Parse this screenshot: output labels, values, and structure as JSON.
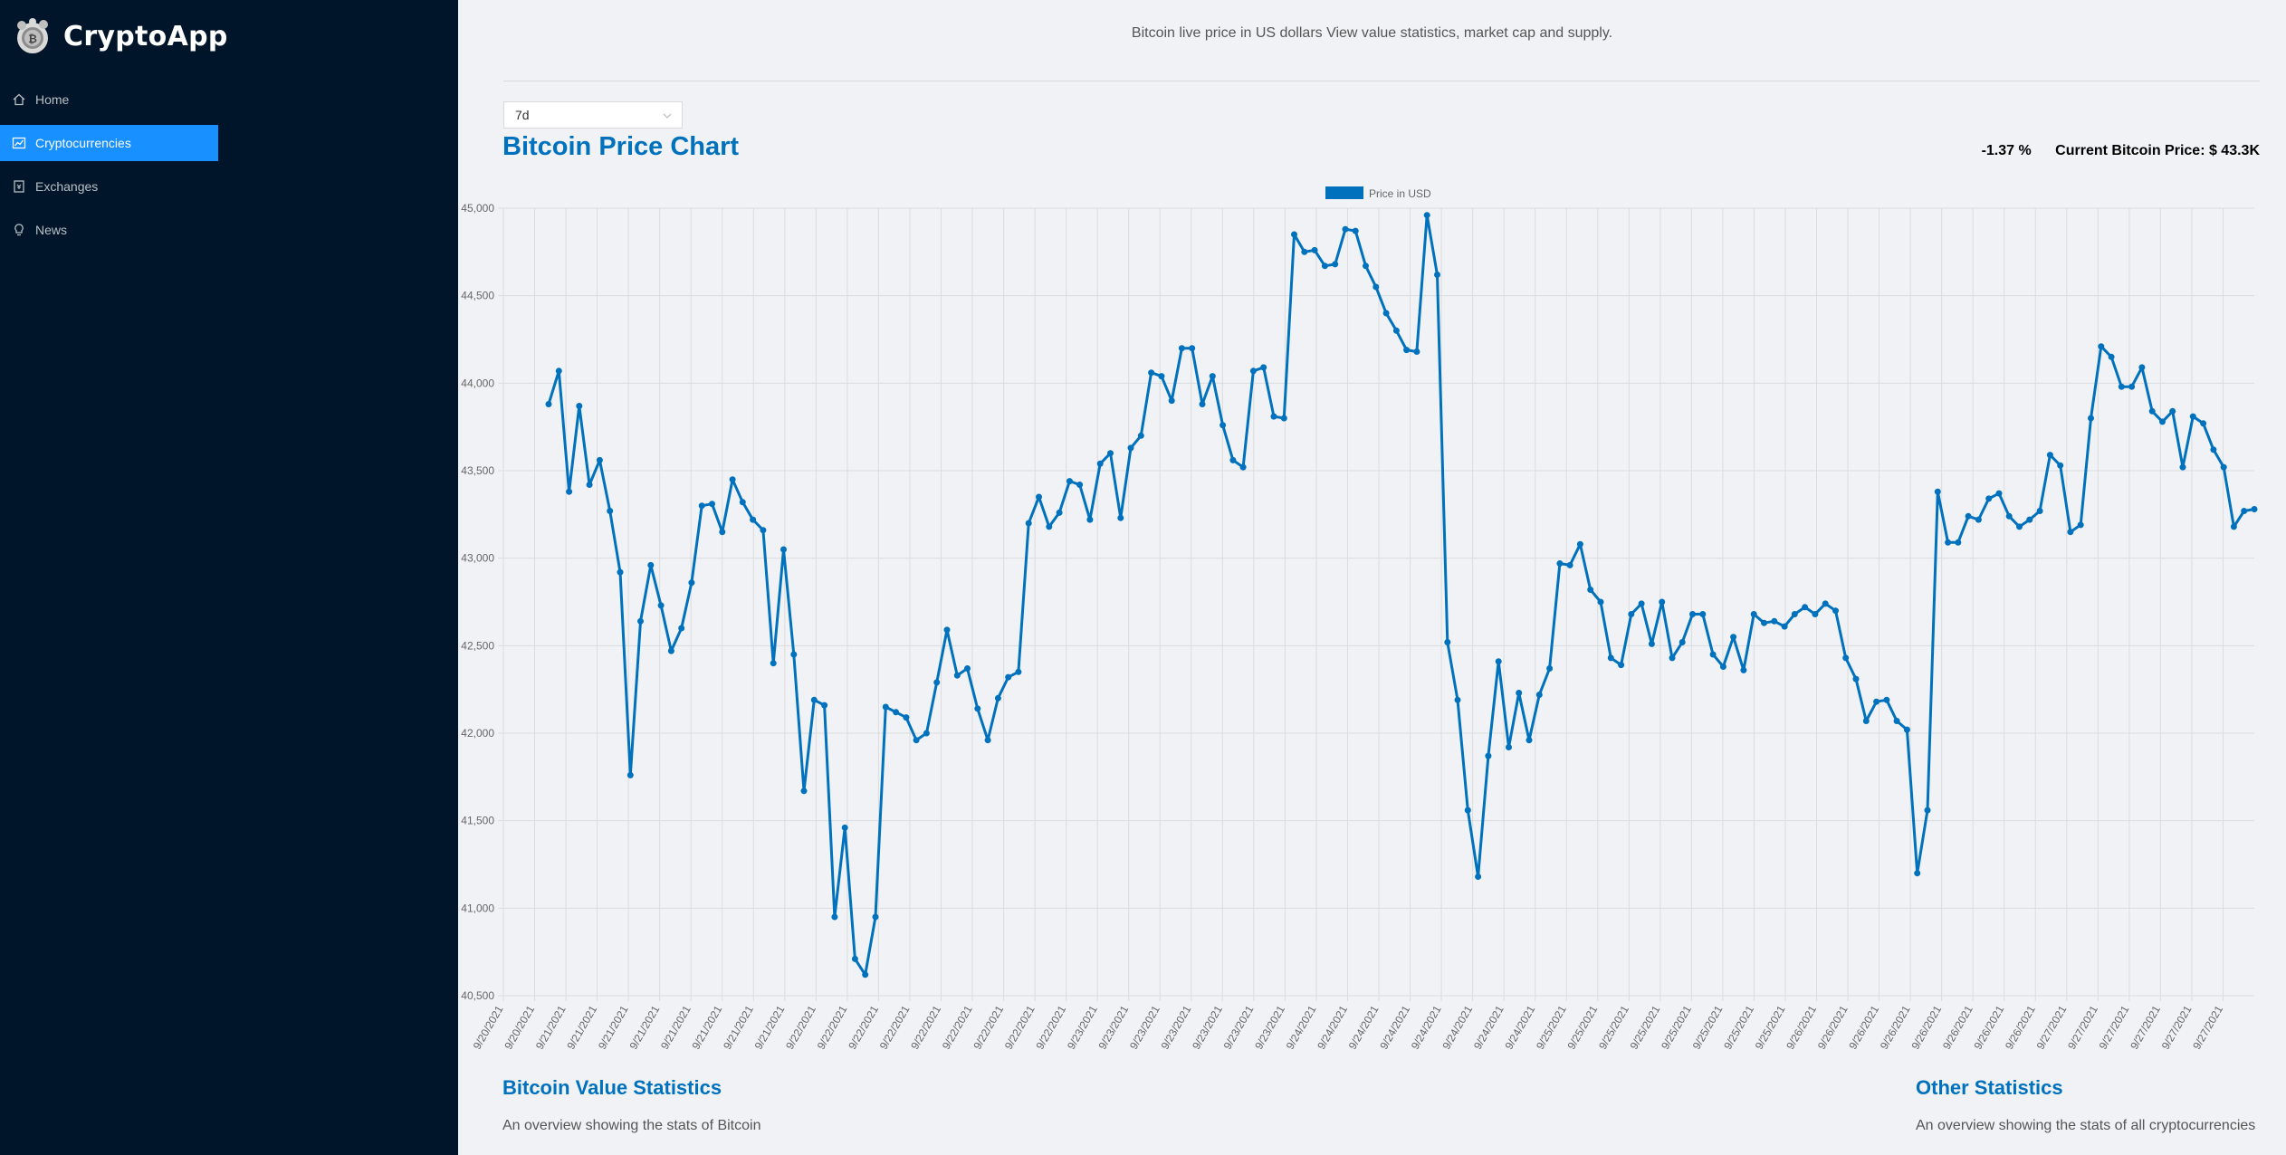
{
  "app": {
    "name": "CryptoApp",
    "logo_icon": "cryptocurrency-logo-icon"
  },
  "nav": [
    {
      "label": "Home",
      "icon": "home-icon"
    },
    {
      "label": "Cryptocurrencies",
      "icon": "fund-icon"
    },
    {
      "label": "Exchanges",
      "icon": "money-collect-icon"
    },
    {
      "label": "News",
      "icon": "bulb-icon"
    }
  ],
  "header": {
    "subtitle": "Bitcoin live price in US dollars View value statistics, market cap and supply."
  },
  "period_select": {
    "value": "7d"
  },
  "chart_title": "Bitcoin Price Chart",
  "price_change": "-1.37 %",
  "current_price": "Current Bitcoin Price: $ 43.3K",
  "colors": {
    "accent": "#0071bd",
    "sidebar": "#001529",
    "active": "#1890ff"
  },
  "chart_data": {
    "type": "line",
    "legend": "Price in USD",
    "legend_position": "top-center",
    "ylim": [
      40500,
      45000
    ],
    "yticks": [
      "45,000",
      "44,500",
      "44,000",
      "43,500",
      "43,000",
      "42,500",
      "42,000",
      "41,500",
      "41,000",
      "40,500"
    ],
    "xticks": [
      "9/20/2021",
      "9/20/2021",
      "9/21/2021",
      "9/21/2021",
      "9/21/2021",
      "9/21/2021",
      "9/21/2021",
      "9/21/2021",
      "9/21/2021",
      "9/21/2021",
      "9/22/2021",
      "9/22/2021",
      "9/22/2021",
      "9/22/2021",
      "9/22/2021",
      "9/22/2021",
      "9/22/2021",
      "9/22/2021",
      "9/22/2021",
      "9/23/2021",
      "9/23/2021",
      "9/23/2021",
      "9/23/2021",
      "9/23/2021",
      "9/23/2021",
      "9/23/2021",
      "9/24/2021",
      "9/24/2021",
      "9/24/2021",
      "9/24/2021",
      "9/24/2021",
      "9/24/2021",
      "9/24/2021",
      "9/24/2021",
      "9/25/2021",
      "9/25/2021",
      "9/25/2021",
      "9/25/2021",
      "9/25/2021",
      "9/25/2021",
      "9/25/2021",
      "9/25/2021",
      "9/26/2021",
      "9/26/2021",
      "9/26/2021",
      "9/26/2021",
      "9/26/2021",
      "9/26/2021",
      "9/26/2021",
      "9/26/2021",
      "9/27/2021",
      "9/27/2021",
      "9/27/2021",
      "9/27/2021",
      "9/27/2021",
      "9/27/2021"
    ],
    "values": [
      43880,
      44070,
      43380,
      43870,
      43420,
      43560,
      43270,
      42920,
      41760,
      42640,
      42960,
      42730,
      42470,
      42600,
      42860,
      43300,
      43310,
      43150,
      43450,
      43320,
      43220,
      43160,
      42400,
      43050,
      42450,
      41670,
      42190,
      42160,
      40950,
      41460,
      40710,
      40620,
      40950,
      42150,
      42120,
      42090,
      41960,
      42000,
      42290,
      42590,
      42330,
      42370,
      42140,
      41960,
      42200,
      42320,
      42350,
      43200,
      43350,
      43180,
      43260,
      43440,
      43420,
      43220,
      43540,
      43600,
      43230,
      43630,
      43700,
      44060,
      44040,
      43900,
      44200,
      44200,
      43880,
      44040,
      43760,
      43560,
      43520,
      44070,
      44090,
      43810,
      43800,
      44850,
      44750,
      44760,
      44670,
      44680,
      44880,
      44870,
      44670,
      44550,
      44400,
      44300,
      44190,
      44180,
      44960,
      44620,
      42520,
      42190,
      41560,
      41180,
      41870,
      42410,
      41920,
      42230,
      41960,
      42220,
      42370,
      42970,
      42960,
      43080,
      42820,
      42750,
      42430,
      42390,
      42680,
      42740,
      42510,
      42750,
      42430,
      42520,
      42680,
      42680,
      42450,
      42380,
      42550,
      42360,
      42680,
      42630,
      42640,
      42610,
      42680,
      42720,
      42680,
      42740,
      42700,
      42430,
      42310,
      42070,
      42180,
      42190,
      42070,
      42020,
      41200,
      41560,
      43380,
      43090,
      43090,
      43240,
      43220,
      43340,
      43370,
      43240,
      43180,
      43220,
      43270,
      43590,
      43530,
      43150,
      43190,
      43800,
      44210,
      44150,
      43980,
      43980,
      44090,
      43840,
      43780,
      43840,
      43520,
      43810,
      43770,
      43620,
      43520,
      43180,
      43270,
      43280
    ]
  },
  "sections": {
    "value_stats": {
      "title": "Bitcoin Value Statistics",
      "desc": "An overview showing the stats of Bitcoin"
    },
    "other_stats": {
      "title": "Other Statistics",
      "desc": "An overview showing the stats of all cryptocurrencies"
    }
  }
}
